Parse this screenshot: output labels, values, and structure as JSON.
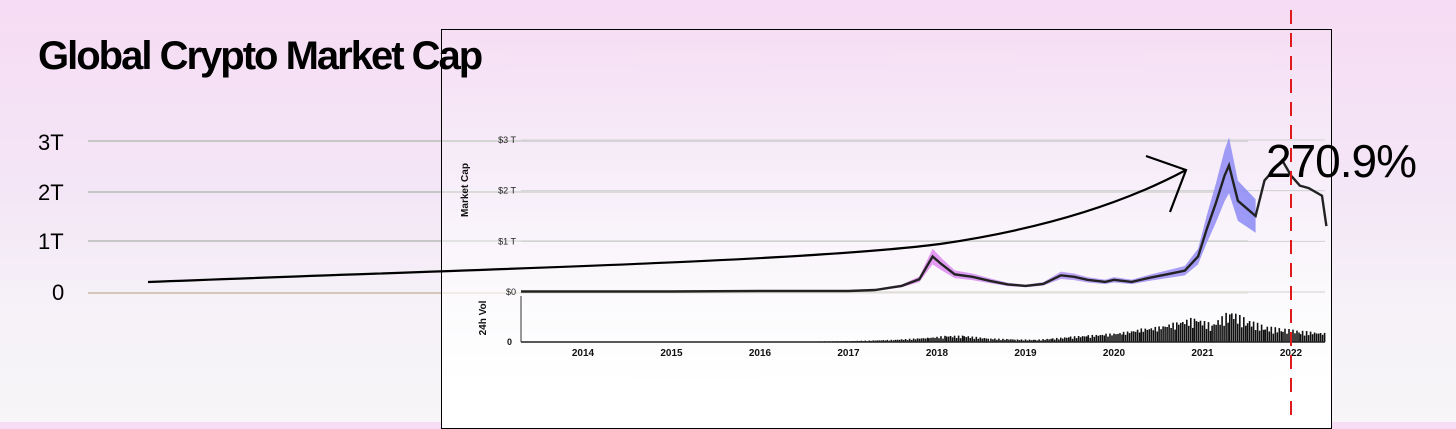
{
  "title": "Global Crypto Market Cap",
  "annotation": "270.9%",
  "outer_axis": {
    "ticks": [
      "3T",
      "2T",
      "1T",
      "0"
    ]
  },
  "chart_data": {
    "type": "area",
    "x_ticks": [
      "2014",
      "2015",
      "2016",
      "2017",
      "2018",
      "2019",
      "2020",
      "2021",
      "2022"
    ],
    "ylabel": "Market Cap",
    "y_ticks": [
      "$3 T",
      "$2 T",
      "$1 T",
      "$0"
    ],
    "ylim": [
      0,
      3
    ],
    "vol_label": "24h Vol",
    "vol_ticks": [
      "0"
    ],
    "series": [
      {
        "name": "",
        "x": [
          2013.3,
          2014,
          2015,
          2016,
          2017,
          2017.3,
          2017.6,
          2017.8,
          2017.95,
          2018.05,
          2018.2,
          2018.4,
          2018.6,
          2018.8,
          2019.0,
          2019.2,
          2019.4,
          2019.55,
          2019.7,
          2019.9,
          2020.0,
          2020.2,
          2020.4,
          2020.6,
          2020.8,
          2020.95,
          2021.05,
          2021.15,
          2021.25,
          2021.3,
          2021.4,
          2021.5,
          2021.6,
          2021.7,
          2021.8,
          2021.9,
          2022.0,
          2022.1,
          2022.2,
          2022.35,
          2022.4
        ],
        "values": [
          0.01,
          0.01,
          0.01,
          0.02,
          0.02,
          0.04,
          0.12,
          0.25,
          0.7,
          0.55,
          0.35,
          0.3,
          0.22,
          0.15,
          0.12,
          0.16,
          0.33,
          0.3,
          0.24,
          0.2,
          0.24,
          0.2,
          0.28,
          0.35,
          0.42,
          0.7,
          1.25,
          1.75,
          2.3,
          2.5,
          1.8,
          1.65,
          1.5,
          2.2,
          2.4,
          2.6,
          2.3,
          2.1,
          2.05,
          1.9,
          1.3
        ]
      }
    ],
    "vol_values": [
      0,
      0,
      0,
      0,
      0.02,
      0.05,
      0.1,
      0.14,
      0.14,
      0.08,
      0.06,
      0.05,
      0.08,
      0.12,
      0.15,
      0.18,
      0.22,
      0.3,
      0.35,
      0.45,
      0.55,
      0.4,
      0.7,
      0.5,
      0.35,
      0.3,
      0.25,
      0.2
    ],
    "vol_x": [
      2013.3,
      2014,
      2015,
      2016,
      2017,
      2017.5,
      2017.9,
      2018.1,
      2018.3,
      2018.6,
      2018.9,
      2019.1,
      2019.3,
      2019.5,
      2019.7,
      2019.9,
      2020.1,
      2020.3,
      2020.5,
      2020.7,
      2020.9,
      2021.1,
      2021.3,
      2021.5,
      2021.7,
      2021.9,
      2022.1,
      2022.4
    ],
    "marker_x": 2022.0,
    "grid": true
  }
}
